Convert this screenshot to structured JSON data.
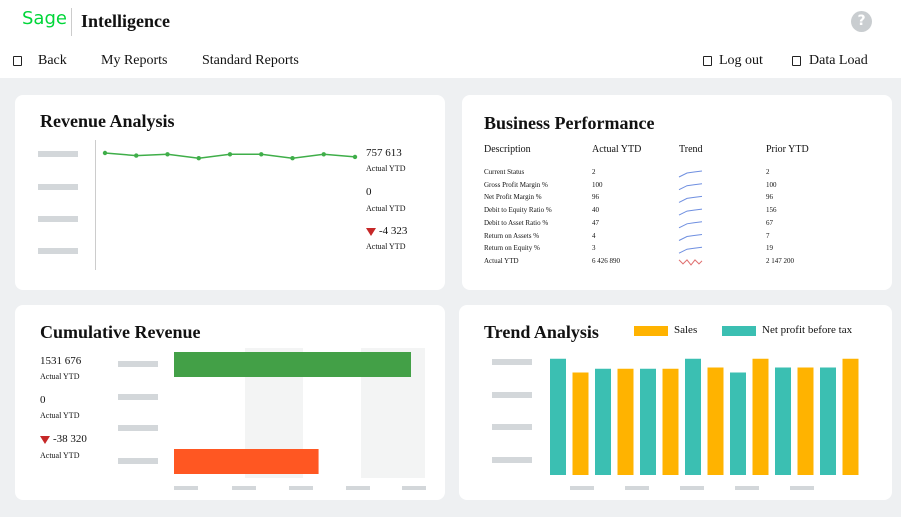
{
  "header": {
    "brand": "Sage",
    "title": "Intelligence",
    "help": "?"
  },
  "nav": {
    "left": [
      "Back",
      "My Reports",
      "Standard Reports"
    ],
    "right": [
      "Log out",
      "Data Load"
    ]
  },
  "revenue_analysis": {
    "title": "Revenue Analysis",
    "color": "#3fae49",
    "ylim": [
      0,
      100
    ],
    "values": [
      90,
      88,
      89,
      86,
      89,
      89,
      86,
      89,
      87
    ],
    "kpis": [
      {
        "value": "757 613",
        "label": "Actual YTD"
      },
      {
        "value": "0",
        "label": "Actual YTD"
      },
      {
        "value": "-4 323",
        "label": "Actual YTD"
      }
    ]
  },
  "business_performance": {
    "title": "Business Performance",
    "columns": [
      "Description",
      "Actual YTD",
      "Trend",
      "Prior YTD"
    ],
    "rows": [
      [
        "Current Status",
        "2",
        "2"
      ],
      [
        "Gross Profit Margin %",
        "100",
        "100"
      ],
      [
        "Net Profit Margin %",
        "96",
        "96"
      ],
      [
        "Debit to Equity Ratio %",
        "40",
        "156"
      ],
      [
        "Debit to Asset Ratio %",
        "47",
        "67"
      ],
      [
        "Return on Assets %",
        "4",
        "7"
      ],
      [
        "Return on Equity %",
        "3",
        "19"
      ],
      [
        "Actual YTD",
        "6 426 890",
        "2 147 200"
      ]
    ]
  },
  "cumulative_revenue": {
    "title": "Cumulative Revenue",
    "xlim": [
      0,
      100
    ],
    "bars": [
      {
        "color": "#43a047",
        "value": 100
      },
      {
        "color": "#ff5722",
        "value": 61
      }
    ],
    "kpis": [
      {
        "value": "1531 676",
        "label": "Actual YTD"
      },
      {
        "value": "0",
        "label": "Actual YTD"
      },
      {
        "value": "-38 320",
        "label": "Actual YTD"
      }
    ]
  },
  "trend_analysis": {
    "title": "Trend Analysis",
    "ylim": [
      0,
      100
    ],
    "series": [
      {
        "name": "Sales",
        "color": "#ffb300",
        "values": [
          82,
          85,
          85,
          86,
          93,
          86,
          93
        ]
      },
      {
        "name": "Net profit before tax",
        "color": "#3bbfb2",
        "values": [
          93,
          85,
          85,
          93,
          82,
          86,
          86
        ]
      }
    ]
  }
}
